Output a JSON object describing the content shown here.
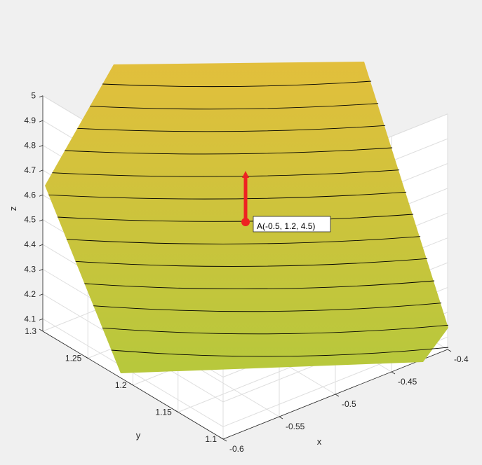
{
  "figure": {
    "background": "#f0f0f0",
    "axes_color": "#ffffff",
    "grid_color": "#dedede",
    "text_color": "#262626"
  },
  "chart_data": {
    "type": "surface",
    "view": "3d",
    "grid": true,
    "xlabel": "x",
    "ylabel": "y",
    "zlabel": "z",
    "xlim": [
      -0.6,
      -0.4
    ],
    "ylim": [
      1.1,
      1.3
    ],
    "zlim": [
      4.05,
      5.0
    ],
    "x_ticks": [
      -0.6,
      -0.55,
      -0.5,
      -0.45,
      -0.4
    ],
    "x_tick_labels": [
      "-0.6",
      "-0.55",
      "-0.5",
      "-0.45",
      "-0.4"
    ],
    "y_ticks": [
      1.1,
      1.15,
      1.2,
      1.25,
      1.3
    ],
    "y_tick_labels": [
      "1.1",
      "1.15",
      "1.2",
      "1.25",
      "1.3"
    ],
    "z_ticks": [
      4.1,
      4.2,
      4.3,
      4.4,
      4.5,
      4.6,
      4.7,
      4.8,
      4.9,
      5.0
    ],
    "z_tick_labels": [
      "4.1",
      "4.2",
      "4.3",
      "4.4",
      "4.5",
      "4.6",
      "4.7",
      "4.8",
      "4.9",
      "5"
    ],
    "surface": {
      "color_top": "#e2bf3c",
      "color_bottom": "#b7c83c",
      "contour_color": "#000000",
      "contour_count": 13,
      "corners": [
        {
          "x": -0.6,
          "y": 1.3,
          "z": 4.6
        },
        {
          "x": -0.6,
          "y": 1.1,
          "z": 4.95
        },
        {
          "x": -0.4,
          "y": 1.1,
          "z": 4.6
        },
        {
          "x": -0.4,
          "y": 1.3,
          "z": 4.1
        }
      ]
    },
    "point": {
      "x": -0.5,
      "y": 1.2,
      "z": 4.5,
      "label": "A(-0.5, 1.2, 4.5)",
      "color": "#ee2222"
    },
    "arrow": {
      "from": [
        -0.5,
        1.2,
        4.5
      ],
      "to": [
        -0.5,
        1.2,
        4.68
      ],
      "color": "#ee2222"
    }
  }
}
